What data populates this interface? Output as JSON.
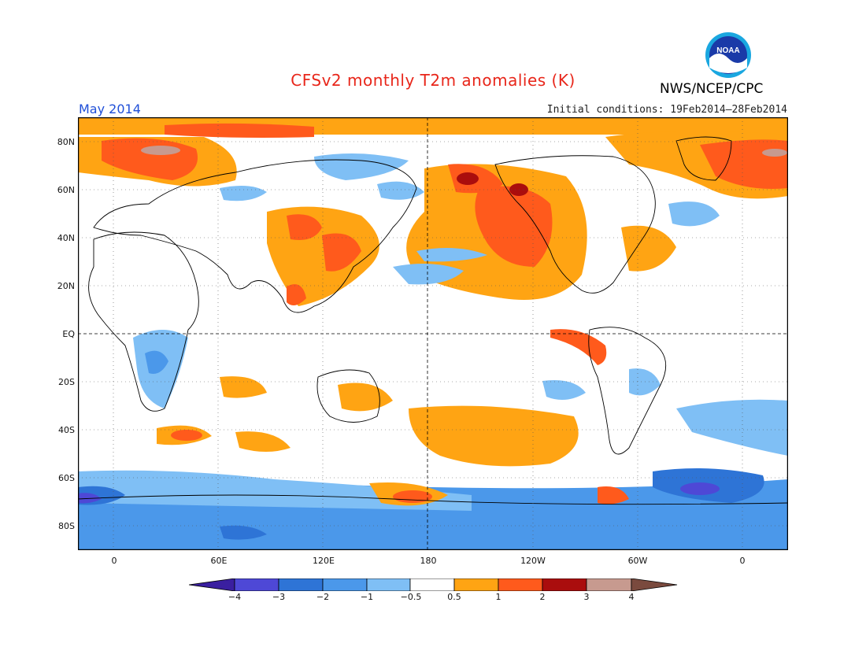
{
  "header": {
    "title": "CFSv2 monthly T2m anomalies (K)",
    "month": "May 2014",
    "initial_conditions": "Initial conditions: 19Feb2014–28Feb2014",
    "agency": "NWS/NCEP/CPC",
    "logo_text": "NOAA"
  },
  "axes": {
    "lat_labels": [
      "80N",
      "60N",
      "40N",
      "20N",
      "EQ",
      "20S",
      "40S",
      "60S",
      "80S"
    ],
    "lon_labels": [
      "0",
      "60E",
      "120E",
      "180",
      "120W",
      "60W",
      "0"
    ]
  },
  "colorbar": {
    "labels": [
      "−4",
      "−3",
      "−2",
      "−1",
      "−0.5",
      "0.5",
      "1",
      "2",
      "3",
      "4"
    ],
    "colors": [
      "#3a1fa0",
      "#4e48d6",
      "#2e74d6",
      "#4b98ea",
      "#7fbff5",
      "#ffffff",
      "#ffa413",
      "#ff5a1c",
      "#aa0d0d",
      "#c79a8f",
      "#7a4a3e"
    ]
  },
  "colors": {
    "cold_1": "#7fbff5",
    "cold_2": "#4b98ea",
    "cold_3": "#2e74d6",
    "cold_4": "#4e48d6",
    "warm_1": "#ffa413",
    "warm_2": "#ff5a1c",
    "warm_3": "#aa0d0d",
    "warm_4": "#c79a8f"
  }
}
